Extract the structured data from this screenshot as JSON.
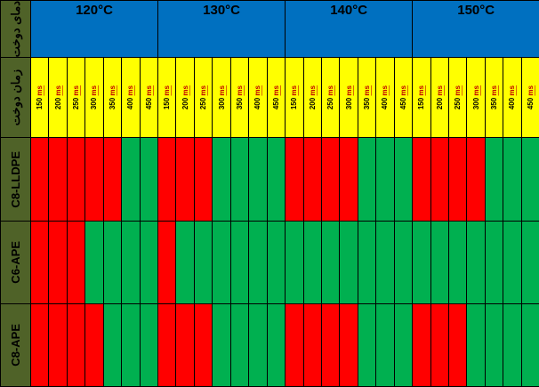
{
  "header": {
    "row1_label": "دمای دوخت",
    "row2_label": "زمان دوخت",
    "temperatures": [
      "120°C",
      "130°C",
      "140°C",
      "150°C"
    ],
    "times": [
      "150",
      "200",
      "250",
      "300",
      "350",
      "400",
      "450"
    ],
    "time_unit": "ms"
  },
  "colors": {
    "red": "#ff0000",
    "green": "#00b050",
    "blue": "#0070c0",
    "yellow": "#ffff00",
    "olive": "#4f6228"
  },
  "rows": [
    {
      "label": "C8-LLDPE",
      "cells": [
        [
          "R",
          "R",
          "R",
          "R",
          "R",
          "G"
        ],
        [
          "R",
          "R",
          "R",
          "G",
          "G",
          "G"
        ],
        [
          "R",
          "R",
          "R",
          "R",
          "G",
          "G"
        ],
        [
          "R",
          "R",
          "R",
          "R",
          "G",
          "G"
        ]
      ]
    },
    {
      "label": "C6-APE",
      "cells": [
        [
          "R",
          "R",
          "R",
          "G",
          "G",
          "G"
        ],
        [
          "R",
          "G",
          "G",
          "G",
          "G",
          "G"
        ],
        [
          "G",
          "G",
          "G",
          "G",
          "G",
          "G"
        ],
        [
          "G",
          "G",
          "G",
          "G",
          "G",
          "G"
        ]
      ]
    },
    {
      "label": "C8-APE",
      "cells": [
        [
          "R",
          "R",
          "R",
          "R",
          "G",
          "G"
        ],
        [
          "R",
          "R",
          "R",
          "G",
          "G",
          "G"
        ],
        [
          "R",
          "R",
          "R",
          "R",
          "G",
          "G"
        ],
        [
          "R",
          "R",
          "R",
          "G",
          "G",
          "G"
        ]
      ]
    }
  ]
}
